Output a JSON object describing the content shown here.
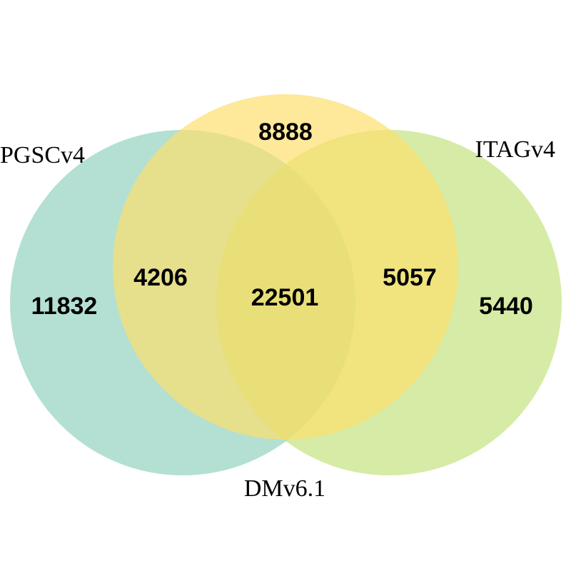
{
  "chart_data": {
    "type": "venn",
    "sets": [
      {
        "name": "PGSCv4",
        "color": "#8fd1bd"
      },
      {
        "name": "DMv6.1",
        "color": "#fdde6a"
      },
      {
        "name": "ITAGv4",
        "color": "#c2e27a"
      }
    ],
    "regions": [
      {
        "sets": [
          "PGSCv4"
        ],
        "value": 11832
      },
      {
        "sets": [
          "DMv6.1"
        ],
        "value": 8888
      },
      {
        "sets": [
          "ITAGv4"
        ],
        "value": 5440
      },
      {
        "sets": [
          "PGSCv4",
          "DMv6.1"
        ],
        "value": 4206
      },
      {
        "sets": [
          "DMv6.1",
          "ITAGv4"
        ],
        "value": 5057
      },
      {
        "sets": [
          "PGSCv4",
          "DMv6.1",
          "ITAGv4"
        ],
        "value": 22501
      }
    ]
  }
}
